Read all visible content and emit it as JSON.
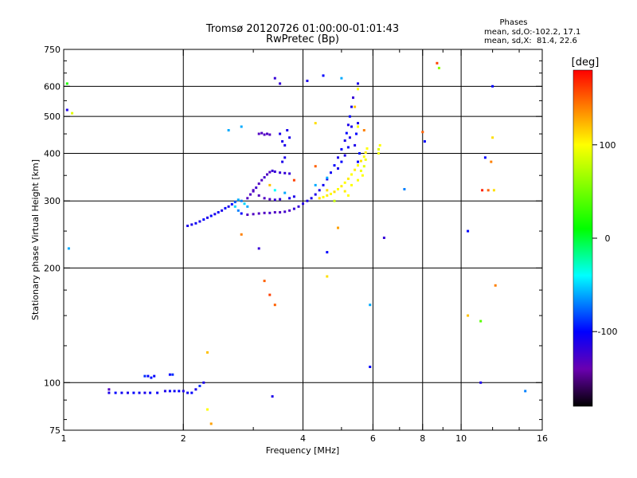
{
  "header": {
    "title": "Tromsø 20120726 01:00:00-01:01:43",
    "subtitle": "RwPretec (Bp)",
    "stats_title": "Phases",
    "stats_o": "mean, sd,O:-102.2, 17.1",
    "stats_x": "mean, sd,X:  81.4, 22.6"
  },
  "chart_data": {
    "type": "scatter",
    "xlabel": "Frequency [MHz]",
    "ylabel": "Stationary phase Virtual Height [km]",
    "xscale": "log",
    "yscale": "log",
    "xlim": [
      1,
      16
    ],
    "ylim": [
      75,
      750
    ],
    "x_ticks": [
      1,
      2,
      4,
      6,
      8,
      10,
      16
    ],
    "x_tick_labels": [
      "1",
      "2",
      "4",
      "6",
      "8",
      "10",
      "16"
    ],
    "y_ticks": [
      75,
      100,
      200,
      300,
      400,
      500,
      600,
      750
    ],
    "y_tick_labels": [
      "75",
      "100",
      "200",
      "300",
      "400",
      "500",
      "600",
      "750"
    ],
    "grid": true,
    "colorbar": {
      "label": "[deg]",
      "range": [
        -180,
        180
      ],
      "ticks": [
        100,
        0,
        -100
      ],
      "tick_labels": [
        "100",
        "0",
        "-100"
      ],
      "colormap": "rainbow",
      "stops": [
        {
          "v": -180,
          "c": "#000000"
        },
        {
          "v": -140,
          "c": "#6a00b0"
        },
        {
          "v": -100,
          "c": "#0000ff"
        },
        {
          "v": -40,
          "c": "#00ffff"
        },
        {
          "v": 10,
          "c": "#00ff00"
        },
        {
          "v": 100,
          "c": "#ffff00"
        },
        {
          "v": 140,
          "c": "#ff8000"
        },
        {
          "v": 180,
          "c": "#ff0000"
        }
      ]
    },
    "series": [
      {
        "points": [
          [
            1.3,
            94,
            -110
          ],
          [
            1.35,
            94,
            -100
          ],
          [
            1.4,
            94,
            -105
          ],
          [
            1.45,
            94,
            -110
          ],
          [
            1.5,
            94,
            -100
          ],
          [
            1.55,
            94,
            -105
          ],
          [
            1.6,
            94,
            -110
          ],
          [
            1.65,
            94,
            -100
          ],
          [
            1.72,
            94,
            -105
          ],
          [
            1.8,
            95,
            -110
          ],
          [
            1.85,
            95,
            -100
          ],
          [
            1.9,
            95,
            -105
          ],
          [
            1.95,
            95,
            -100
          ],
          [
            2.0,
            95,
            -110
          ],
          [
            2.05,
            94,
            -105
          ],
          [
            2.1,
            94,
            -100
          ],
          [
            2.15,
            96,
            -110
          ],
          [
            2.2,
            98,
            -90
          ],
          [
            2.25,
            100,
            -110
          ],
          [
            1.6,
            104,
            -90
          ],
          [
            1.63,
            104,
            -100
          ],
          [
            1.66,
            103,
            -95
          ],
          [
            1.69,
            104,
            -100
          ],
          [
            1.85,
            105,
            -100
          ],
          [
            1.88,
            105,
            -90
          ],
          [
            2.05,
            258,
            -110
          ],
          [
            2.1,
            260,
            -110
          ],
          [
            2.15,
            262,
            -105
          ],
          [
            2.2,
            265,
            -110
          ],
          [
            2.25,
            268,
            -100
          ],
          [
            2.3,
            271,
            -110
          ],
          [
            2.35,
            274,
            -100
          ],
          [
            2.4,
            277,
            -110
          ],
          [
            2.45,
            280,
            -105
          ],
          [
            2.5,
            283,
            -110
          ],
          [
            2.55,
            287,
            -100
          ],
          [
            2.6,
            290,
            -110
          ],
          [
            2.65,
            294,
            -100
          ],
          [
            2.7,
            298,
            -80
          ],
          [
            2.75,
            302,
            -60
          ],
          [
            2.8,
            300,
            -70
          ],
          [
            2.85,
            295,
            -50
          ],
          [
            2.9,
            290,
            -60
          ],
          [
            2.7,
            290,
            -50
          ],
          [
            2.75,
            283,
            -70
          ],
          [
            2.8,
            278,
            -100
          ],
          [
            2.9,
            276,
            -130
          ],
          [
            3.0,
            277,
            -130
          ],
          [
            3.1,
            278,
            -130
          ],
          [
            3.2,
            279,
            -130
          ],
          [
            3.3,
            279,
            -125
          ],
          [
            3.4,
            280,
            -130
          ],
          [
            3.5,
            280,
            -130
          ],
          [
            3.6,
            281,
            -125
          ],
          [
            3.7,
            283,
            -130
          ],
          [
            3.8,
            286,
            -120
          ],
          [
            3.9,
            290,
            -120
          ],
          [
            4.0,
            295,
            -115
          ],
          [
            4.1,
            300,
            -110
          ],
          [
            4.2,
            305,
            -110
          ],
          [
            4.3,
            312,
            -110
          ],
          [
            4.4,
            320,
            -110
          ],
          [
            4.5,
            330,
            -105
          ],
          [
            4.6,
            342,
            -110
          ],
          [
            4.7,
            356,
            -105
          ],
          [
            4.8,
            372,
            -100
          ],
          [
            4.9,
            390,
            -110
          ],
          [
            5.0,
            410,
            -100
          ],
          [
            5.1,
            432,
            -110
          ],
          [
            5.15,
            452,
            -100
          ],
          [
            5.2,
            475,
            -110
          ],
          [
            5.25,
            500,
            -100
          ],
          [
            5.3,
            530,
            -110
          ],
          [
            5.35,
            560,
            -120
          ],
          [
            5.3,
            470,
            -110
          ],
          [
            5.25,
            440,
            -110
          ],
          [
            5.2,
            415,
            -105
          ],
          [
            5.1,
            395,
            -110
          ],
          [
            5.0,
            380,
            -100
          ],
          [
            4.9,
            365,
            -110
          ],
          [
            5.4,
            420,
            -110
          ],
          [
            5.45,
            450,
            -100
          ],
          [
            5.5,
            480,
            -110
          ],
          [
            5.5,
            380,
            -100
          ],
          [
            5.55,
            400,
            -95
          ],
          [
            2.9,
            305,
            -130
          ],
          [
            2.95,
            312,
            -130
          ],
          [
            3.0,
            318,
            -130
          ],
          [
            3.05,
            325,
            -125
          ],
          [
            3.1,
            333,
            -130
          ],
          [
            3.15,
            340,
            -130
          ],
          [
            3.2,
            346,
            -125
          ],
          [
            3.25,
            352,
            -130
          ],
          [
            3.3,
            357,
            -130
          ],
          [
            3.35,
            360,
            -120
          ],
          [
            3.4,
            358,
            -120
          ],
          [
            3.5,
            356,
            -120
          ],
          [
            3.6,
            355,
            -120
          ],
          [
            3.7,
            354,
            -120
          ],
          [
            3.0,
            320,
            -130
          ],
          [
            3.1,
            310,
            -130
          ],
          [
            3.2,
            305,
            -130
          ],
          [
            3.3,
            303,
            -130
          ],
          [
            3.4,
            302,
            -120
          ],
          [
            3.5,
            303,
            -120
          ],
          [
            3.7,
            305,
            -110
          ],
          [
            3.8,
            308,
            -110
          ],
          [
            3.1,
            450,
            -130
          ],
          [
            3.15,
            452,
            -130
          ],
          [
            3.2,
            448,
            -130
          ],
          [
            3.25,
            450,
            -130
          ],
          [
            3.3,
            448,
            -130
          ],
          [
            3.5,
            450,
            -110
          ],
          [
            3.55,
            430,
            -110
          ],
          [
            3.6,
            420,
            -110
          ],
          [
            3.65,
            460,
            -110
          ],
          [
            3.7,
            440,
            -110
          ],
          [
            3.55,
            380,
            -110
          ],
          [
            3.6,
            390,
            -110
          ],
          [
            3.4,
            630,
            -120
          ],
          [
            3.5,
            610,
            -120
          ],
          [
            4.1,
            620,
            -110
          ],
          [
            4.5,
            640,
            -100
          ],
          [
            5.0,
            630,
            -60
          ],
          [
            5.5,
            610,
            -110
          ],
          [
            3.4,
            320,
            -40
          ],
          [
            3.6,
            315,
            -60
          ],
          [
            4.3,
            330,
            -60
          ],
          [
            4.6,
            345,
            -60
          ],
          [
            2.6,
            460,
            -60
          ],
          [
            2.8,
            470,
            -60
          ],
          [
            1.02,
            520,
            -110
          ],
          [
            1.3,
            96,
            -130
          ],
          [
            3.35,
            92,
            -110
          ],
          [
            6.4,
            240,
            -120
          ],
          [
            8.1,
            430,
            -100
          ],
          [
            11.2,
            100,
            -110
          ],
          [
            10.4,
            250,
            -100
          ],
          [
            11.5,
            390,
            -100
          ],
          [
            12.0,
            600,
            -100
          ],
          [
            14.5,
            95,
            -70
          ],
          [
            5.9,
            110,
            -100
          ],
          [
            5.9,
            160,
            -60
          ],
          [
            4.6,
            220,
            -100
          ],
          [
            3.1,
            225,
            -120
          ],
          [
            7.2,
            322,
            -70
          ],
          [
            1.03,
            225,
            -60
          ]
        ]
      },
      {
        "points": [
          [
            4.4,
            305,
            110
          ],
          [
            4.5,
            307,
            100
          ],
          [
            4.6,
            310,
            105
          ],
          [
            4.7,
            313,
            100
          ],
          [
            4.8,
            317,
            110
          ],
          [
            4.9,
            322,
            100
          ],
          [
            5.0,
            328,
            105
          ],
          [
            5.1,
            335,
            100
          ],
          [
            5.2,
            343,
            105
          ],
          [
            5.3,
            352,
            100
          ],
          [
            5.4,
            362,
            105
          ],
          [
            5.5,
            372,
            100
          ],
          [
            5.6,
            382,
            110
          ],
          [
            5.7,
            392,
            100
          ],
          [
            5.75,
            402,
            105
          ],
          [
            5.8,
            412,
            100
          ],
          [
            5.6,
            360,
            95
          ],
          [
            5.7,
            370,
            90
          ],
          [
            5.65,
            350,
            100
          ],
          [
            5.75,
            385,
            95
          ],
          [
            5.5,
            340,
            100
          ],
          [
            5.3,
            330,
            100
          ],
          [
            5.1,
            318,
            105
          ],
          [
            6.2,
            410,
            90
          ],
          [
            6.25,
            420,
            100
          ],
          [
            6.2,
            400,
            95
          ],
          [
            5.5,
            470,
            100
          ],
          [
            5.7,
            460,
            140
          ],
          [
            4.6,
            190,
            110
          ],
          [
            4.9,
            255,
            130
          ],
          [
            2.3,
            120,
            120
          ],
          [
            2.35,
            78,
            130
          ],
          [
            2.3,
            85,
            100
          ],
          [
            2.8,
            245,
            140
          ],
          [
            3.2,
            185,
            150
          ],
          [
            3.3,
            170,
            160
          ],
          [
            3.4,
            160,
            150
          ],
          [
            4.3,
            370,
            150
          ],
          [
            4.3,
            480,
            110
          ],
          [
            5.2,
            310,
            100
          ],
          [
            5.4,
            530,
            120
          ],
          [
            5.5,
            590,
            100
          ],
          [
            1.05,
            510,
            90
          ],
          [
            1.02,
            610,
            20
          ],
          [
            10.4,
            150,
            120
          ],
          [
            11.2,
            145,
            40
          ],
          [
            12.2,
            180,
            140
          ],
          [
            12.0,
            440,
            110
          ],
          [
            12.1,
            320,
            110
          ],
          [
            11.7,
            320,
            150
          ],
          [
            11.9,
            380,
            140
          ],
          [
            11.3,
            320,
            170
          ],
          [
            8.0,
            455,
            150
          ],
          [
            8.7,
            690,
            160
          ],
          [
            8.8,
            670,
            60
          ],
          [
            3.8,
            340,
            160
          ],
          [
            3.3,
            330,
            120
          ],
          [
            4.6,
            320,
            110
          ],
          [
            4.8,
            300,
            80
          ]
        ]
      }
    ]
  }
}
